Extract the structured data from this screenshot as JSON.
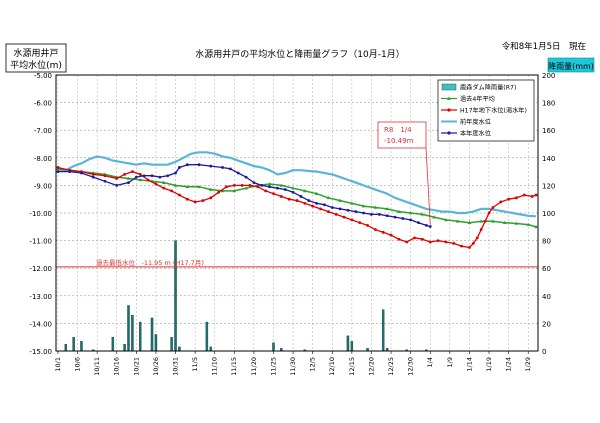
{
  "chart_data": {
    "type": "line",
    "title": "水源用井戸の平均水位と降雨量グラフ（10月-1月）",
    "date_label": "令和8年1月5日　現在",
    "ylabel_left_1": "水源用井戸",
    "ylabel_left_2": "平均水位(m)",
    "ylabel_right": "降雨量(mm)",
    "ylim_left": [
      -15.0,
      -5.0
    ],
    "ylim_right": [
      0,
      200
    ],
    "yticks_left": [
      "-5.00",
      "-6.00",
      "-7.00",
      "-8.00",
      "-9.00",
      "-10.00",
      "-11.00",
      "-12.00",
      "-13.00",
      "-14.00",
      "-15.00"
    ],
    "yticks_right": [
      "200",
      "180",
      "160",
      "140",
      "120",
      "100",
      "80",
      "60",
      "40",
      "20",
      "0"
    ],
    "xticks": [
      {
        "i": 0,
        "label": "10/1"
      },
      {
        "i": 5,
        "label": "10/6"
      },
      {
        "i": 10,
        "label": "10/11"
      },
      {
        "i": 15,
        "label": "10/16"
      },
      {
        "i": 20,
        "label": "10/21"
      },
      {
        "i": 25,
        "label": "10/26"
      },
      {
        "i": 30,
        "label": "10/31"
      },
      {
        "i": 35,
        "label": "11/5"
      },
      {
        "i": 40,
        "label": "11/10"
      },
      {
        "i": 45,
        "label": "11/15"
      },
      {
        "i": 50,
        "label": "11/20"
      },
      {
        "i": 55,
        "label": "11/25"
      },
      {
        "i": 60,
        "label": "11/30"
      },
      {
        "i": 65,
        "label": "12/5"
      },
      {
        "i": 70,
        "label": "12/10"
      },
      {
        "i": 75,
        "label": "12/15"
      },
      {
        "i": 80,
        "label": "12/20"
      },
      {
        "i": 85,
        "label": "12/25"
      },
      {
        "i": 90,
        "label": "12/30"
      },
      {
        "i": 95,
        "label": "1/4"
      },
      {
        "i": 100,
        "label": "1/9"
      },
      {
        "i": 105,
        "label": "1/14"
      },
      {
        "i": 110,
        "label": "1/19"
      },
      {
        "i": 115,
        "label": "1/24"
      },
      {
        "i": 120,
        "label": "1/29"
      }
    ],
    "n_days": 123,
    "legend": [
      {
        "name": "鹿森ダム降雨量(R7)",
        "kind": "bar",
        "color": "#40c0c0"
      },
      {
        "name": "過去4年平均",
        "kind": "line-tri",
        "color": "#2ea02e"
      },
      {
        "name": "H17年地下水位(渇水年)",
        "kind": "line-dot",
        "color": "#e00000"
      },
      {
        "name": "前年度水位",
        "kind": "line",
        "color": "#5bb4d8"
      },
      {
        "name": "本年度水位",
        "kind": "line-dot",
        "color": "#1a1aa0"
      }
    ],
    "series": [
      {
        "name": "前年度水位",
        "color": "#5bb4d8",
        "width": 2.2,
        "marker": "none",
        "points": [
          [
            0,
            -8.45
          ],
          [
            2,
            -8.45
          ],
          [
            4,
            -8.3
          ],
          [
            6,
            -8.2
          ],
          [
            8,
            -8.05
          ],
          [
            10,
            -7.95
          ],
          [
            12,
            -8.0
          ],
          [
            14,
            -8.1
          ],
          [
            16,
            -8.15
          ],
          [
            18,
            -8.2
          ],
          [
            20,
            -8.25
          ],
          [
            22,
            -8.2
          ],
          [
            24,
            -8.25
          ],
          [
            26,
            -8.25
          ],
          [
            28,
            -8.25
          ],
          [
            30,
            -8.15
          ],
          [
            32,
            -8.0
          ],
          [
            34,
            -7.85
          ],
          [
            36,
            -7.8
          ],
          [
            38,
            -7.8
          ],
          [
            40,
            -7.85
          ],
          [
            42,
            -7.95
          ],
          [
            44,
            -8.0
          ],
          [
            46,
            -8.1
          ],
          [
            48,
            -8.2
          ],
          [
            50,
            -8.3
          ],
          [
            52,
            -8.35
          ],
          [
            54,
            -8.45
          ],
          [
            56,
            -8.6
          ],
          [
            58,
            -8.55
          ],
          [
            60,
            -8.45
          ],
          [
            62,
            -8.45
          ],
          [
            64,
            -8.48
          ],
          [
            66,
            -8.5
          ],
          [
            68,
            -8.55
          ],
          [
            70,
            -8.6
          ],
          [
            72,
            -8.7
          ],
          [
            74,
            -8.8
          ],
          [
            76,
            -8.9
          ],
          [
            78,
            -9.0
          ],
          [
            80,
            -9.1
          ],
          [
            82,
            -9.2
          ],
          [
            84,
            -9.3
          ],
          [
            86,
            -9.45
          ],
          [
            88,
            -9.55
          ],
          [
            90,
            -9.65
          ],
          [
            92,
            -9.75
          ],
          [
            94,
            -9.85
          ],
          [
            96,
            -9.9
          ],
          [
            98,
            -9.95
          ],
          [
            100,
            -9.95
          ],
          [
            102,
            -10.0
          ],
          [
            104,
            -10.0
          ],
          [
            106,
            -9.95
          ],
          [
            108,
            -9.85
          ],
          [
            110,
            -9.85
          ],
          [
            112,
            -9.9
          ],
          [
            114,
            -9.95
          ],
          [
            116,
            -10.0
          ],
          [
            118,
            -10.05
          ],
          [
            120,
            -10.1
          ],
          [
            122,
            -10.12
          ]
        ]
      },
      {
        "name": "過去4年平均",
        "color": "#2ea02e",
        "width": 1.5,
        "marker": "tri",
        "points": [
          [
            0,
            -8.4
          ],
          [
            3,
            -8.45
          ],
          [
            6,
            -8.5
          ],
          [
            9,
            -8.55
          ],
          [
            12,
            -8.6
          ],
          [
            15,
            -8.7
          ],
          [
            18,
            -8.75
          ],
          [
            21,
            -8.8
          ],
          [
            24,
            -8.85
          ],
          [
            27,
            -8.9
          ],
          [
            30,
            -9.0
          ],
          [
            33,
            -9.05
          ],
          [
            36,
            -9.05
          ],
          [
            39,
            -9.15
          ],
          [
            42,
            -9.2
          ],
          [
            45,
            -9.2
          ],
          [
            48,
            -9.1
          ],
          [
            51,
            -9.0
          ],
          [
            54,
            -8.95
          ],
          [
            57,
            -9.0
          ],
          [
            60,
            -9.1
          ],
          [
            63,
            -9.2
          ],
          [
            66,
            -9.3
          ],
          [
            69,
            -9.45
          ],
          [
            72,
            -9.55
          ],
          [
            75,
            -9.65
          ],
          [
            78,
            -9.75
          ],
          [
            81,
            -9.8
          ],
          [
            84,
            -9.85
          ],
          [
            87,
            -9.95
          ],
          [
            90,
            -10.0
          ],
          [
            93,
            -10.05
          ],
          [
            96,
            -10.15
          ],
          [
            99,
            -10.25
          ],
          [
            102,
            -10.3
          ],
          [
            105,
            -10.35
          ],
          [
            108,
            -10.3
          ],
          [
            111,
            -10.3
          ],
          [
            114,
            -10.35
          ],
          [
            117,
            -10.38
          ],
          [
            120,
            -10.42
          ],
          [
            122,
            -10.5
          ]
        ]
      },
      {
        "name": "H17年地下水位(渇水年)",
        "color": "#e00000",
        "width": 1.3,
        "marker": "dot",
        "points": [
          [
            0,
            -8.35
          ],
          [
            3,
            -8.45
          ],
          [
            6,
            -8.5
          ],
          [
            9,
            -8.6
          ],
          [
            12,
            -8.65
          ],
          [
            15,
            -8.75
          ],
          [
            17,
            -8.6
          ],
          [
            19,
            -8.5
          ],
          [
            21,
            -8.6
          ],
          [
            23,
            -8.8
          ],
          [
            25,
            -8.95
          ],
          [
            27,
            -9.1
          ],
          [
            29,
            -9.2
          ],
          [
            31,
            -9.35
          ],
          [
            33,
            -9.5
          ],
          [
            35,
            -9.6
          ],
          [
            37,
            -9.55
          ],
          [
            39,
            -9.45
          ],
          [
            41,
            -9.25
          ],
          [
            43,
            -9.05
          ],
          [
            45,
            -9.0
          ],
          [
            47,
            -9.0
          ],
          [
            49,
            -9.0
          ],
          [
            51,
            -9.05
          ],
          [
            53,
            -9.2
          ],
          [
            55,
            -9.3
          ],
          [
            57,
            -9.4
          ],
          [
            59,
            -9.5
          ],
          [
            61,
            -9.55
          ],
          [
            63,
            -9.65
          ],
          [
            65,
            -9.75
          ],
          [
            67,
            -9.85
          ],
          [
            69,
            -9.95
          ],
          [
            71,
            -10.05
          ],
          [
            73,
            -10.15
          ],
          [
            75,
            -10.25
          ],
          [
            77,
            -10.35
          ],
          [
            79,
            -10.45
          ],
          [
            81,
            -10.6
          ],
          [
            83,
            -10.7
          ],
          [
            85,
            -10.8
          ],
          [
            87,
            -10.95
          ],
          [
            89,
            -11.05
          ],
          [
            91,
            -10.9
          ],
          [
            93,
            -10.95
          ],
          [
            95,
            -11.05
          ],
          [
            97,
            -11.0
          ],
          [
            99,
            -11.05
          ],
          [
            101,
            -11.1
          ],
          [
            103,
            -11.2
          ],
          [
            105,
            -11.25
          ],
          [
            106,
            -11.1
          ],
          [
            107,
            -10.9
          ],
          [
            108,
            -10.6
          ],
          [
            109,
            -10.3
          ],
          [
            110,
            -10.0
          ],
          [
            111,
            -9.8
          ],
          [
            113,
            -9.6
          ],
          [
            115,
            -9.5
          ],
          [
            117,
            -9.45
          ],
          [
            119,
            -9.35
          ],
          [
            121,
            -9.4
          ],
          [
            122,
            -9.35
          ]
        ]
      },
      {
        "name": "本年度水位",
        "color": "#1a1aa0",
        "width": 1.3,
        "marker": "dot",
        "points": [
          [
            0,
            -8.5
          ],
          [
            3,
            -8.5
          ],
          [
            6,
            -8.55
          ],
          [
            9,
            -8.7
          ],
          [
            12,
            -8.85
          ],
          [
            15,
            -9.0
          ],
          [
            18,
            -8.9
          ],
          [
            20,
            -8.7
          ],
          [
            22,
            -8.65
          ],
          [
            24,
            -8.65
          ],
          [
            26,
            -8.7
          ],
          [
            28,
            -8.65
          ],
          [
            30,
            -8.55
          ],
          [
            31,
            -8.35
          ],
          [
            33,
            -8.25
          ],
          [
            36,
            -8.25
          ],
          [
            39,
            -8.3
          ],
          [
            42,
            -8.35
          ],
          [
            44,
            -8.4
          ],
          [
            46,
            -8.55
          ],
          [
            48,
            -8.7
          ],
          [
            50,
            -8.9
          ],
          [
            52,
            -9.0
          ],
          [
            54,
            -9.05
          ],
          [
            56,
            -9.1
          ],
          [
            58,
            -9.15
          ],
          [
            60,
            -9.25
          ],
          [
            62,
            -9.4
          ],
          [
            64,
            -9.55
          ],
          [
            66,
            -9.65
          ],
          [
            68,
            -9.7
          ],
          [
            70,
            -9.8
          ],
          [
            72,
            -9.85
          ],
          [
            74,
            -9.9
          ],
          [
            76,
            -9.95
          ],
          [
            78,
            -10.0
          ],
          [
            80,
            -10.05
          ],
          [
            82,
            -10.05
          ],
          [
            84,
            -10.1
          ],
          [
            86,
            -10.15
          ],
          [
            88,
            -10.2
          ],
          [
            90,
            -10.25
          ],
          [
            92,
            -10.35
          ],
          [
            94,
            -10.45
          ],
          [
            95,
            -10.49
          ]
        ]
      }
    ],
    "rain": [
      [
        2,
        5
      ],
      [
        4,
        10
      ],
      [
        6,
        7
      ],
      [
        9,
        1
      ],
      [
        14,
        10
      ],
      [
        17,
        5
      ],
      [
        18,
        33
      ],
      [
        19,
        26
      ],
      [
        21,
        21
      ],
      [
        24,
        24
      ],
      [
        25,
        12
      ],
      [
        29,
        10
      ],
      [
        30,
        80
      ],
      [
        31,
        3
      ],
      [
        38,
        21
      ],
      [
        39,
        3
      ],
      [
        55,
        6
      ],
      [
        57,
        2
      ],
      [
        63,
        1
      ],
      [
        74,
        11
      ],
      [
        75,
        7
      ],
      [
        79,
        2
      ],
      [
        83,
        30
      ],
      [
        84,
        2
      ],
      [
        89,
        1
      ],
      [
        94,
        1
      ]
    ],
    "threshold": {
      "value": -11.95,
      "label": "過去最低水位　-11.95 m (H17.7月)",
      "color": "#e03030"
    },
    "callout": {
      "line1": "R8　1/4",
      "line2": "-10.49m",
      "color": "#e03030",
      "target_i": 95,
      "target_v": -10.49
    }
  }
}
